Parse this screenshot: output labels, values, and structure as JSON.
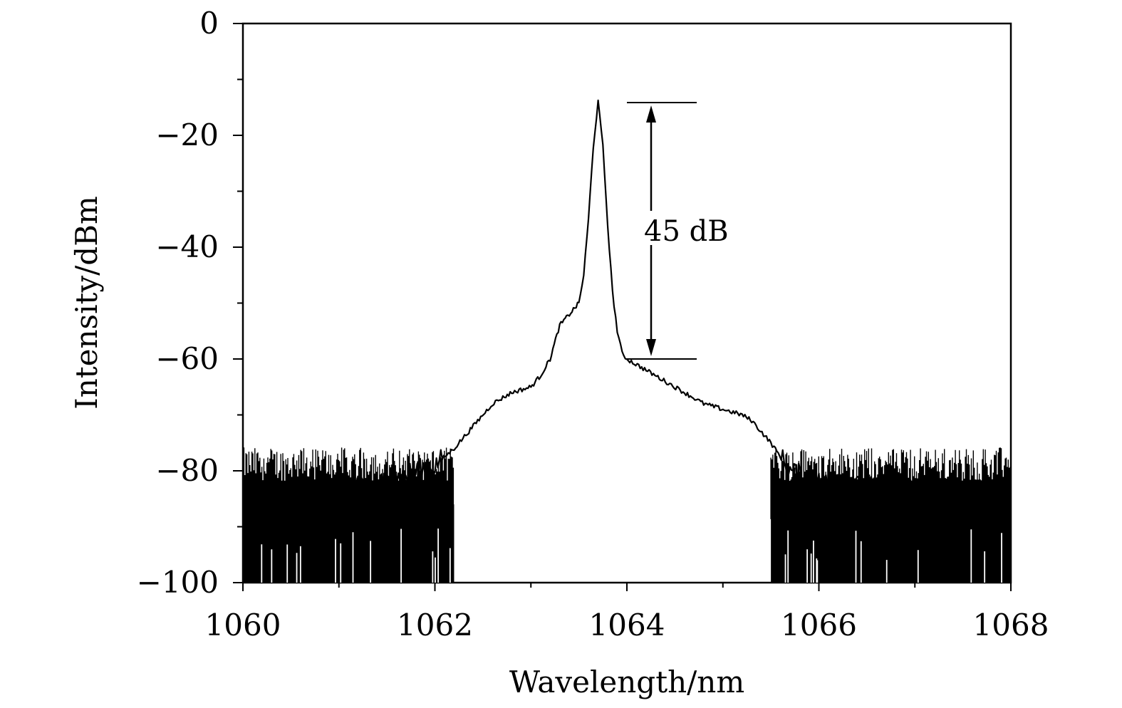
{
  "chart_data": {
    "type": "line",
    "title": "",
    "xlabel": "Wavelength/nm",
    "ylabel": "Intensity/dBm",
    "xlim": [
      1060,
      1068
    ],
    "ylim": [
      -100,
      0
    ],
    "x_ticks": [
      1060,
      1062,
      1064,
      1066,
      1068
    ],
    "x_tick_labels": [
      "1060",
      "1062",
      "1064",
      "1066",
      "1068"
    ],
    "y_ticks": [
      0,
      -20,
      -40,
      -60,
      -80,
      -100
    ],
    "y_tick_labels": [
      "0",
      "−20",
      "−40",
      "−60",
      "−80",
      "−100"
    ],
    "grid": false,
    "legend": "none",
    "line_color": "#000000",
    "series": [
      {
        "x": [
          1060.0,
          1060.5,
          1061.0,
          1061.5,
          1061.8,
          1062.0,
          1062.2,
          1062.4,
          1062.6,
          1062.8,
          1063.0,
          1063.1,
          1063.2,
          1063.3,
          1063.4,
          1063.5,
          1063.55,
          1063.6,
          1063.65,
          1063.7,
          1063.75,
          1063.8,
          1063.85,
          1063.9,
          1063.95,
          1064.0,
          1064.2,
          1064.4,
          1064.6,
          1064.8,
          1065.0,
          1065.2,
          1065.3,
          1065.5,
          1065.7,
          1066.0,
          1066.5,
          1067.0,
          1067.5,
          1068.0
        ],
        "y": [
          -84,
          -84,
          -83,
          -82,
          -80,
          -79,
          -76,
          -72,
          -68,
          -66,
          -65,
          -63,
          -60,
          -54,
          -52,
          -50,
          -45,
          -35,
          -22,
          -14,
          -22,
          -36,
          -48,
          -55,
          -59,
          -60,
          -62,
          -64,
          -66,
          -68,
          -69,
          -70,
          -71,
          -75,
          -80,
          -82,
          -83,
          -83,
          -84,
          -84
        ]
      }
    ],
    "noise_floor": {
      "top": -80,
      "bottom": -100,
      "x_ranges": [
        [
          1060,
          1062.2
        ],
        [
          1065.5,
          1068
        ]
      ]
    },
    "annotations": [
      {
        "text": "45 dB",
        "type": "double-arrow",
        "x": 1064.3,
        "y_top": -14,
        "y_bottom": -60
      }
    ]
  }
}
